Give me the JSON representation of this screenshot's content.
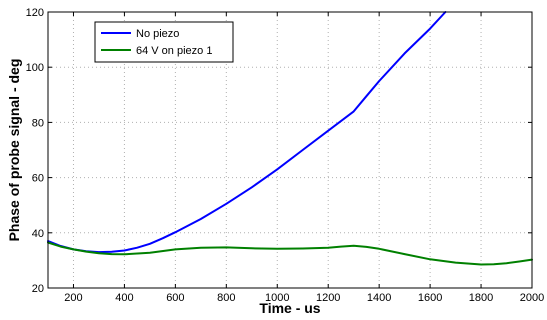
{
  "chart_data": {
    "type": "line",
    "xlabel": "Time - us",
    "ylabel": "Phase of probe signal - deg",
    "xlim": [
      100,
      2000
    ],
    "ylim": [
      20,
      120
    ],
    "xticks": [
      200,
      400,
      600,
      800,
      1000,
      1200,
      1400,
      1600,
      1800,
      2000
    ],
    "yticks": [
      20,
      40,
      60,
      80,
      100,
      120
    ],
    "grid": true,
    "legend_position": "top-left",
    "series": [
      {
        "name": "No piezo",
        "color": "#0000ff",
        "x": [
          100,
          150,
          200,
          250,
          300,
          350,
          400,
          450,
          500,
          550,
          600,
          700,
          800,
          900,
          1000,
          1100,
          1200,
          1300,
          1350,
          1400,
          1500,
          1600,
          1660
        ],
        "y": [
          37,
          35.2,
          34,
          33.3,
          33,
          33.1,
          33.6,
          34.6,
          36,
          38,
          40.2,
          45,
          50.5,
          56.5,
          63,
          70,
          77,
          84,
          89.5,
          95,
          105,
          114,
          120
        ]
      },
      {
        "name": "64 V on piezo 1",
        "color": "#008000",
        "x": [
          100,
          150,
          200,
          250,
          300,
          350,
          400,
          500,
          600,
          700,
          800,
          900,
          1000,
          1100,
          1200,
          1250,
          1300,
          1350,
          1400,
          1500,
          1600,
          1700,
          1800,
          1850,
          1900,
          1950,
          2000
        ],
        "y": [
          36.5,
          35,
          34,
          33.2,
          32.6,
          32.3,
          32.2,
          32.8,
          34,
          34.6,
          34.7,
          34.4,
          34.2,
          34.3,
          34.6,
          35,
          35.3,
          34.9,
          34.2,
          32.3,
          30.4,
          29.2,
          28.5,
          28.6,
          29,
          29.6,
          30.3
        ]
      }
    ]
  }
}
